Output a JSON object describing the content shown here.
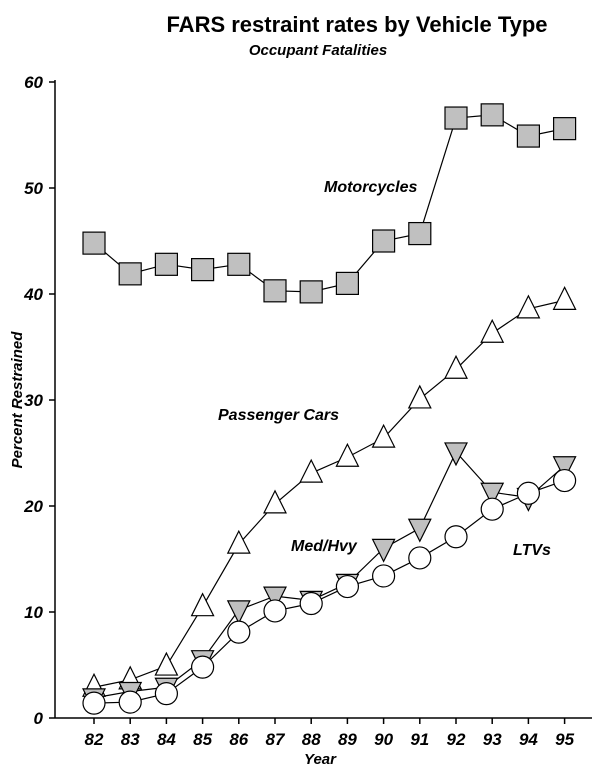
{
  "chart_data": {
    "type": "line",
    "title": "FARS restraint rates by Vehicle Type",
    "subtitle": "Occupant Fatalities",
    "xlabel": "Year",
    "ylabel": "Percent Restrained",
    "ylim": [
      0,
      60
    ],
    "yticks": [
      "0",
      "10",
      "20",
      "30",
      "40",
      "50",
      "60"
    ],
    "categories": [
      "82",
      "83",
      "84",
      "85",
      "86",
      "87",
      "88",
      "89",
      "90",
      "91",
      "92",
      "93",
      "94",
      "95"
    ],
    "grid": false,
    "series": [
      {
        "name": "Motorcycles",
        "marker": "square",
        "color": "#c0c0c0",
        "values": [
          44.8,
          41.9,
          42.8,
          42.3,
          42.8,
          40.3,
          40.2,
          41.0,
          45.0,
          45.7,
          56.6,
          56.9,
          54.9,
          55.6
        ]
      },
      {
        "name": "Passenger Cars",
        "marker": "triangle-up",
        "color": "#ffffff",
        "values": [
          2.9,
          3.6,
          4.9,
          10.5,
          16.4,
          20.2,
          23.1,
          24.6,
          26.4,
          30.1,
          32.9,
          36.3,
          38.6,
          39.4
        ]
      },
      {
        "name": "Med/Hvy",
        "marker": "triangle-down",
        "color": "#c0c0c0",
        "values": [
          1.9,
          2.5,
          2.9,
          5.5,
          10.2,
          11.5,
          11.1,
          12.7,
          16.0,
          17.9,
          25.1,
          21.3,
          20.8,
          23.8
        ]
      },
      {
        "name": "LTVs",
        "marker": "circle",
        "color": "#ffffff",
        "values": [
          1.4,
          1.5,
          2.3,
          4.8,
          8.1,
          10.1,
          10.8,
          12.4,
          13.4,
          15.1,
          17.1,
          19.7,
          21.2,
          22.4
        ]
      }
    ],
    "series_labels": [
      "Motorcycles",
      "Passenger Cars",
      "Med/Hvy",
      "LTVs"
    ]
  }
}
